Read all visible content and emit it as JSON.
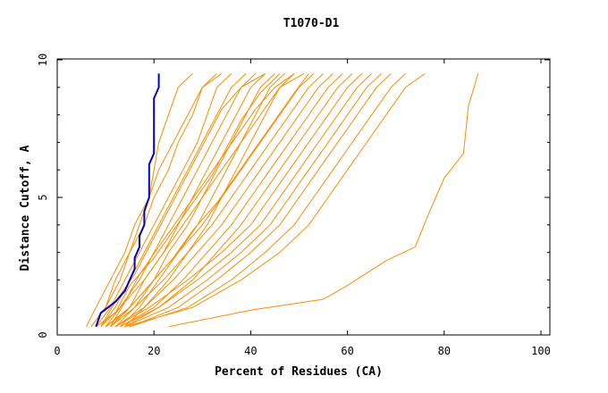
{
  "chart_data": {
    "type": "line",
    "title": "T1070-D1",
    "xlabel": "Percent of Residues (CA)",
    "ylabel": "Distance Cutoff, A",
    "xlim": [
      0,
      100
    ],
    "ylim": [
      0,
      10
    ],
    "x_ticks": [
      "0",
      "20",
      "40",
      "60",
      "80",
      "100"
    ],
    "y_ticks": [
      "0",
      "5",
      "10"
    ],
    "grid": false,
    "colors": {
      "highlight": "#0000cc",
      "other": "#ff8c00"
    },
    "series": [
      {
        "highlight": true,
        "x": [
          8,
          9,
          12,
          14,
          15,
          16,
          16,
          17,
          17,
          18,
          18,
          19,
          19,
          20,
          20,
          21,
          21
        ],
        "y": [
          0.3,
          0.8,
          1.2,
          1.6,
          2.0,
          2.4,
          2.8,
          3.2,
          3.6,
          4.0,
          4.5,
          5.0,
          6.2,
          6.6,
          8.6,
          9.0,
          9.5
        ]
      },
      {
        "highlight": false,
        "x": [
          7,
          10,
          13,
          15,
          18,
          20,
          23,
          25,
          28,
          30,
          33
        ],
        "y": [
          0.3,
          1.0,
          2.0,
          3.0,
          4.0,
          5.0,
          6.0,
          7.0,
          8.0,
          9.0,
          9.5
        ]
      },
      {
        "highlight": false,
        "x": [
          6,
          8,
          11,
          14,
          16,
          19,
          21,
          24,
          27,
          30,
          34
        ],
        "y": [
          0.3,
          1.0,
          2.0,
          3.0,
          4.0,
          5.0,
          6.0,
          7.0,
          8.0,
          9.0,
          9.5
        ]
      },
      {
        "highlight": false,
        "x": [
          8,
          11,
          14,
          17,
          20,
          23,
          26,
          29,
          31,
          33,
          36
        ],
        "y": [
          0.3,
          1.0,
          2.0,
          3.0,
          4.0,
          5.0,
          6.0,
          7.0,
          8.0,
          9.0,
          9.5
        ]
      },
      {
        "highlight": false,
        "x": [
          9,
          12,
          15,
          18,
          21,
          24,
          27,
          30,
          33,
          36,
          39
        ],
        "y": [
          0.3,
          1.0,
          2.0,
          3.0,
          4.0,
          5.0,
          6.0,
          7.0,
          8.0,
          9.0,
          9.5
        ]
      },
      {
        "highlight": false,
        "x": [
          10,
          13,
          17,
          20,
          23,
          26,
          29,
          32,
          35,
          38,
          41
        ],
        "y": [
          0.3,
          1.0,
          2.0,
          3.0,
          4.0,
          5.0,
          6.0,
          7.0,
          8.0,
          9.0,
          9.5
        ]
      },
      {
        "highlight": false,
        "x": [
          11,
          15,
          18,
          22,
          25,
          28,
          31,
          34,
          37,
          40,
          43
        ],
        "y": [
          0.3,
          1.0,
          2.0,
          3.0,
          4.0,
          5.0,
          6.0,
          7.0,
          8.0,
          9.0,
          9.5
        ]
      },
      {
        "highlight": false,
        "x": [
          12,
          16,
          20,
          23,
          27,
          30,
          33,
          36,
          39,
          42,
          45
        ],
        "y": [
          0.3,
          1.0,
          2.0,
          3.0,
          4.0,
          5.0,
          6.0,
          7.0,
          8.0,
          9.0,
          9.5
        ]
      },
      {
        "highlight": false,
        "x": [
          13,
          17,
          21,
          25,
          29,
          32,
          35,
          38,
          41,
          44,
          47
        ],
        "y": [
          0.3,
          1.0,
          2.0,
          3.0,
          4.0,
          5.0,
          6.0,
          7.0,
          8.0,
          9.0,
          9.5
        ]
      },
      {
        "highlight": false,
        "x": [
          14,
          18,
          23,
          27,
          31,
          34,
          37,
          40,
          43,
          46,
          49
        ],
        "y": [
          0.3,
          1.0,
          2.0,
          3.0,
          4.0,
          5.0,
          6.0,
          7.0,
          8.0,
          9.0,
          9.5
        ]
      },
      {
        "highlight": false,
        "x": [
          9,
          13,
          18,
          22,
          26,
          30,
          34,
          38,
          42,
          46,
          51
        ],
        "y": [
          0.3,
          1.0,
          2.0,
          3.0,
          4.0,
          5.0,
          6.0,
          7.0,
          8.0,
          9.0,
          9.5
        ]
      },
      {
        "highlight": false,
        "x": [
          10,
          15,
          20,
          25,
          30,
          34,
          38,
          42,
          46,
          50,
          53
        ],
        "y": [
          0.3,
          1.0,
          2.0,
          3.0,
          4.0,
          5.0,
          6.0,
          7.0,
          8.0,
          9.0,
          9.5
        ]
      },
      {
        "highlight": false,
        "x": [
          11,
          16,
          22,
          27,
          32,
          36,
          40,
          44,
          48,
          52,
          55
        ],
        "y": [
          0.3,
          1.0,
          2.0,
          3.0,
          4.0,
          5.0,
          6.0,
          7.0,
          8.0,
          9.0,
          9.5
        ]
      },
      {
        "highlight": false,
        "x": [
          12,
          18,
          24,
          29,
          34,
          38,
          42,
          46,
          50,
          54,
          57
        ],
        "y": [
          0.3,
          1.0,
          2.0,
          3.0,
          4.0,
          5.0,
          6.0,
          7.0,
          8.0,
          9.0,
          9.5
        ]
      },
      {
        "highlight": false,
        "x": [
          13,
          20,
          26,
          31,
          36,
          40,
          44,
          48,
          52,
          56,
          59
        ],
        "y": [
          0.3,
          1.0,
          2.0,
          3.0,
          4.0,
          5.0,
          6.0,
          7.0,
          8.0,
          9.0,
          9.5
        ]
      },
      {
        "highlight": false,
        "x": [
          14,
          21,
          28,
          33,
          38,
          42,
          46,
          50,
          54,
          58,
          61
        ],
        "y": [
          0.3,
          1.0,
          2.0,
          3.0,
          4.0,
          5.0,
          6.0,
          7.0,
          8.0,
          9.0,
          9.5
        ]
      },
      {
        "highlight": false,
        "x": [
          12,
          19,
          27,
          34,
          40,
          44,
          48,
          52,
          56,
          60,
          63
        ],
        "y": [
          0.3,
          1.0,
          2.0,
          3.0,
          4.0,
          5.0,
          6.0,
          7.0,
          8.0,
          9.0,
          9.5
        ]
      },
      {
        "highlight": false,
        "x": [
          13,
          21,
          29,
          36,
          42,
          46,
          50,
          54,
          58,
          62,
          65
        ],
        "y": [
          0.3,
          1.0,
          2.0,
          3.0,
          4.0,
          5.0,
          6.0,
          7.0,
          8.0,
          9.0,
          9.5
        ]
      },
      {
        "highlight": false,
        "x": [
          14,
          23,
          31,
          38,
          44,
          48,
          52,
          56,
          60,
          64,
          67
        ],
        "y": [
          0.3,
          1.0,
          2.0,
          3.0,
          4.0,
          5.0,
          6.0,
          7.0,
          8.0,
          9.0,
          9.5
        ]
      },
      {
        "highlight": false,
        "x": [
          15,
          25,
          33,
          40,
          46,
          50,
          54,
          58,
          62,
          66,
          69
        ],
        "y": [
          0.3,
          1.0,
          2.0,
          3.0,
          4.0,
          5.0,
          6.0,
          7.0,
          8.0,
          9.0,
          9.5
        ]
      },
      {
        "highlight": false,
        "x": [
          15,
          27,
          36,
          43,
          49,
          53,
          57,
          61,
          65,
          69,
          72
        ],
        "y": [
          0.3,
          1.0,
          2.0,
          3.0,
          4.0,
          5.0,
          6.0,
          7.0,
          8.0,
          9.0,
          9.5
        ]
      },
      {
        "highlight": false,
        "x": [
          14,
          28,
          38,
          46,
          52,
          56,
          60,
          64,
          68,
          72,
          76
        ],
        "y": [
          0.3,
          1.0,
          2.0,
          3.0,
          4.0,
          5.0,
          6.0,
          7.0,
          8.0,
          9.0,
          9.5
        ]
      },
      {
        "highlight": false,
        "x": [
          9,
          12,
          16,
          19,
          22,
          25,
          28,
          31,
          34,
          38,
          43
        ],
        "y": [
          0.3,
          1.2,
          2.2,
          3.2,
          4.2,
          5.2,
          6.2,
          7.2,
          8.2,
          9.0,
          9.5
        ]
      },
      {
        "highlight": false,
        "x": [
          11,
          14,
          17,
          21,
          25,
          29,
          33,
          37,
          41,
          45,
          49
        ],
        "y": [
          0.3,
          1.2,
          2.2,
          3.2,
          4.2,
          5.2,
          6.2,
          7.2,
          8.2,
          9.0,
          9.5
        ]
      },
      {
        "highlight": false,
        "x": [
          8,
          12,
          15,
          20,
          24,
          28,
          32,
          35,
          38,
          42,
          46
        ],
        "y": [
          0.3,
          0.8,
          1.8,
          2.8,
          3.8,
          4.8,
          5.8,
          6.8,
          7.8,
          8.8,
          9.5
        ]
      },
      {
        "highlight": false,
        "x": [
          10,
          14,
          19,
          24,
          28,
          33,
          37,
          41,
          45,
          49,
          52
        ],
        "y": [
          0.3,
          0.8,
          1.8,
          2.8,
          3.8,
          4.8,
          5.8,
          6.8,
          7.8,
          8.8,
          9.5
        ]
      },
      {
        "highlight": false,
        "x": [
          7,
          10,
          12,
          15,
          17,
          19,
          20,
          21,
          23,
          25,
          28
        ],
        "y": [
          0.3,
          1.0,
          2.0,
          3.0,
          4.0,
          5.0,
          6.0,
          7.0,
          8.0,
          9.0,
          9.5
        ]
      },
      {
        "highlight": false,
        "x": [
          23,
          40,
          55,
          60,
          68,
          74,
          77,
          80,
          84,
          85,
          87
        ],
        "y": [
          0.3,
          0.9,
          1.3,
          1.8,
          2.7,
          3.2,
          4.5,
          5.7,
          6.6,
          8.3,
          9.5
        ]
      }
    ]
  }
}
